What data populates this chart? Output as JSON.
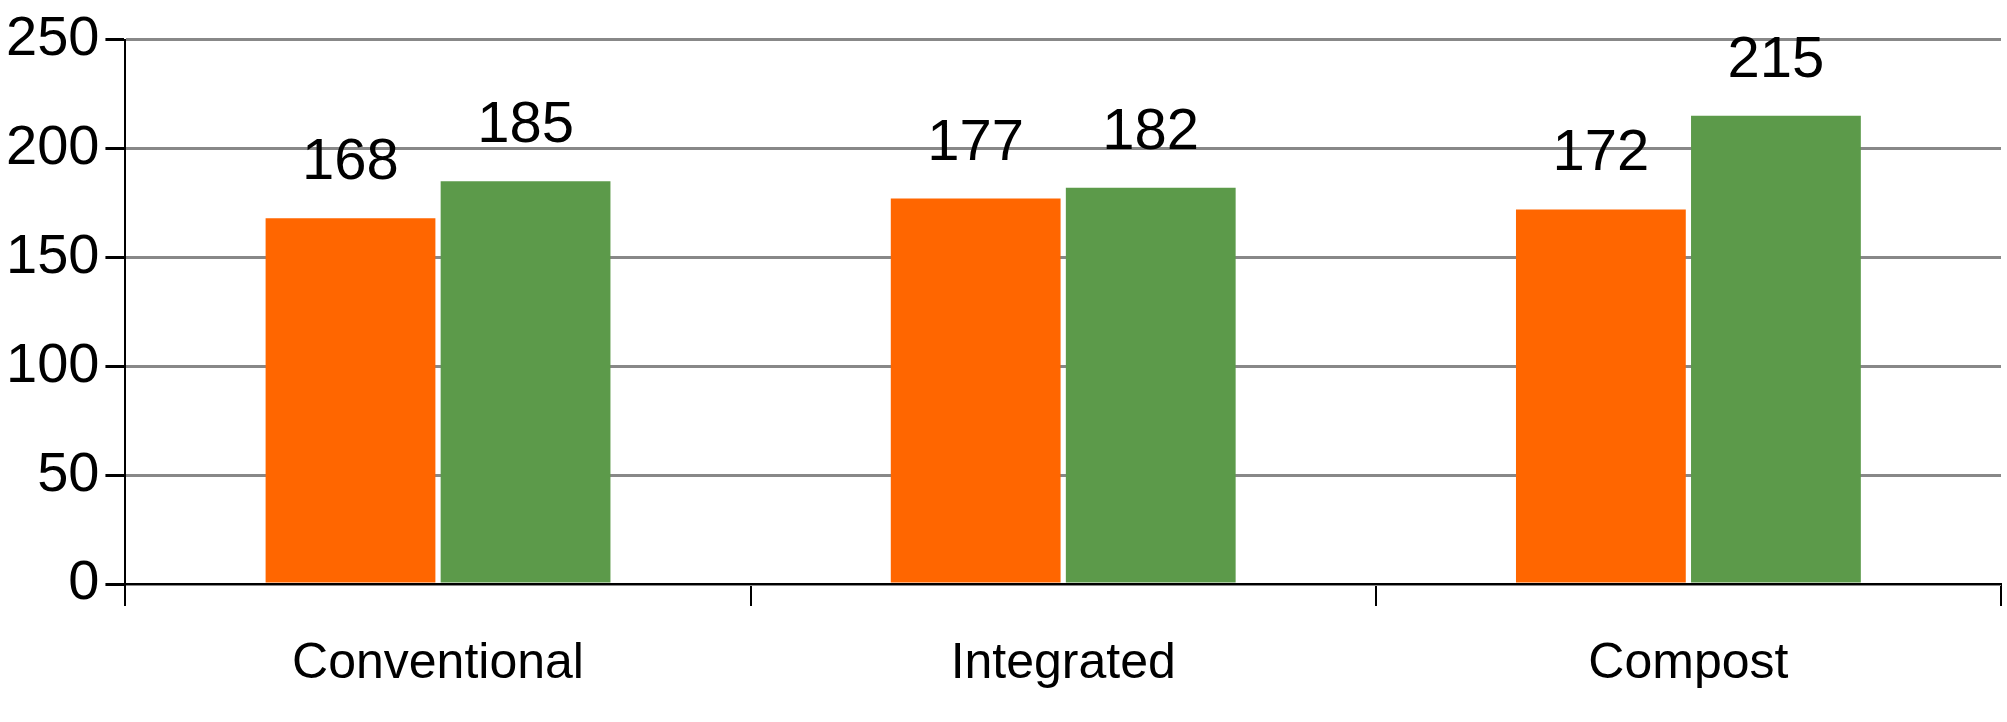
{
  "chart_data": {
    "type": "bar",
    "categories": [
      "Conventional",
      "Integrated",
      "Compost"
    ],
    "series": [
      {
        "color": "#ff6600",
        "values": [
          168,
          177,
          172
        ]
      },
      {
        "color": "#5c9a4a",
        "values": [
          185,
          182,
          215
        ]
      }
    ],
    "ylim": [
      0,
      250
    ],
    "yticks": [
      0,
      50,
      100,
      150,
      200,
      250
    ],
    "grid": "y",
    "legend": false,
    "data_labels": true
  }
}
